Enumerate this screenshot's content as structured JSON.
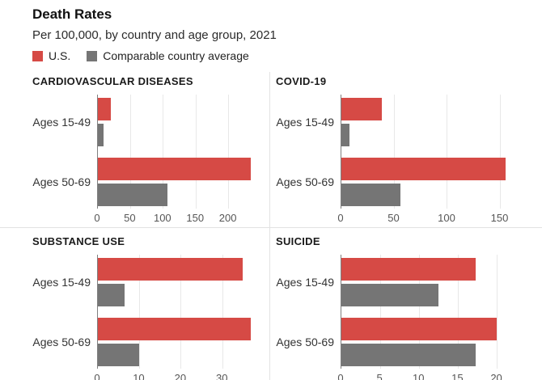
{
  "header": {
    "title": "Death Rates",
    "subtitle": "Per 100,000, by country and age group, 2021"
  },
  "legend": {
    "us": "U.S.",
    "comparable": "Comparable country average"
  },
  "colors": {
    "us": "#d64a45",
    "comparable": "#757575",
    "gridline": "#e8e8e8",
    "axis_line": "#7f7f7f",
    "divider": "#e2e2e2"
  },
  "chart_data": [
    {
      "type": "bar",
      "orientation": "horizontal",
      "title": "CARDIOVASCULAR DISEASES",
      "categories": [
        "Ages 15-49",
        "Ages 50-69"
      ],
      "series": [
        {
          "name": "U.S.",
          "values": [
            20,
            235
          ]
        },
        {
          "name": "Comparable country average",
          "values": [
            9,
            107
          ]
        }
      ],
      "ticks": [
        0,
        50,
        100,
        150,
        200
      ],
      "xlim": [
        0,
        245
      ],
      "grid": true
    },
    {
      "type": "bar",
      "orientation": "horizontal",
      "title": "COVID-19",
      "categories": [
        "Ages 15-49",
        "Ages 50-69"
      ],
      "series": [
        {
          "name": "U.S.",
          "values": [
            38,
            156
          ]
        },
        {
          "name": "Comparable country average",
          "values": [
            8,
            56
          ]
        }
      ],
      "ticks": [
        0,
        50,
        100,
        150
      ],
      "xlim": [
        0,
        158
      ],
      "grid": true
    },
    {
      "type": "bar",
      "orientation": "horizontal",
      "title": "SUBSTANCE USE",
      "categories": [
        "Ages 15-49",
        "Ages 50-69"
      ],
      "series": [
        {
          "name": "U.S.",
          "values": [
            35,
            37
          ]
        },
        {
          "name": "Comparable country average",
          "values": [
            6.5,
            10
          ]
        }
      ],
      "ticks": [
        0,
        10,
        20,
        30
      ],
      "xlim": [
        0,
        38.5
      ],
      "grid": true
    },
    {
      "type": "bar",
      "orientation": "horizontal",
      "title": "SUICIDE",
      "categories": [
        "Ages 15-49",
        "Ages 50-69"
      ],
      "series": [
        {
          "name": "U.S.",
          "values": [
            17.3,
            20
          ]
        },
        {
          "name": "Comparable country average",
          "values": [
            12.5,
            17.3
          ]
        }
      ],
      "ticks": [
        0,
        5,
        10,
        15,
        20
      ],
      "xlim": [
        0,
        21.5
      ],
      "grid": true
    }
  ]
}
